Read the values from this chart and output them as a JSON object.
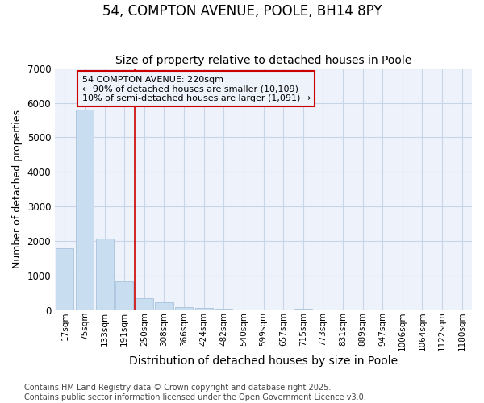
{
  "title": "54, COMPTON AVENUE, POOLE, BH14 8PY",
  "subtitle": "Size of property relative to detached houses in Poole",
  "xlabel": "Distribution of detached houses by size in Poole",
  "ylabel": "Number of detached properties",
  "bar_labels": [
    "17sqm",
    "75sqm",
    "133sqm",
    "191sqm",
    "250sqm",
    "308sqm",
    "366sqm",
    "424sqm",
    "482sqm",
    "540sqm",
    "599sqm",
    "657sqm",
    "715sqm",
    "773sqm",
    "831sqm",
    "889sqm",
    "947sqm",
    "1006sqm",
    "1064sqm",
    "1122sqm",
    "1180sqm"
  ],
  "bar_values": [
    1800,
    5800,
    2090,
    840,
    350,
    230,
    110,
    70,
    50,
    40,
    35,
    20,
    55,
    4,
    2,
    1,
    1,
    0,
    0,
    0,
    0
  ],
  "bar_color": "#c8ddf0",
  "bar_edgecolor": "#a0bcd8",
  "vline_x": 3.5,
  "vline_color": "#cc0000",
  "ylim": [
    0,
    7000
  ],
  "annotation_text": "54 COMPTON AVENUE: 220sqm\n← 90% of detached houses are smaller (10,109)\n10% of semi-detached houses are larger (1,091) →",
  "annotation_box_color": "#cc0000",
  "plot_bg_color": "#eef2fb",
  "figure_bg_color": "#ffffff",
  "grid_color": "#c8d4e8",
  "footer_text": "Contains HM Land Registry data © Crown copyright and database right 2025.\nContains public sector information licensed under the Open Government Licence v3.0.",
  "title_fontsize": 12,
  "subtitle_fontsize": 10,
  "xlabel_fontsize": 10,
  "ylabel_fontsize": 9,
  "tick_fontsize": 7.5,
  "annotation_fontsize": 8,
  "footer_fontsize": 7
}
